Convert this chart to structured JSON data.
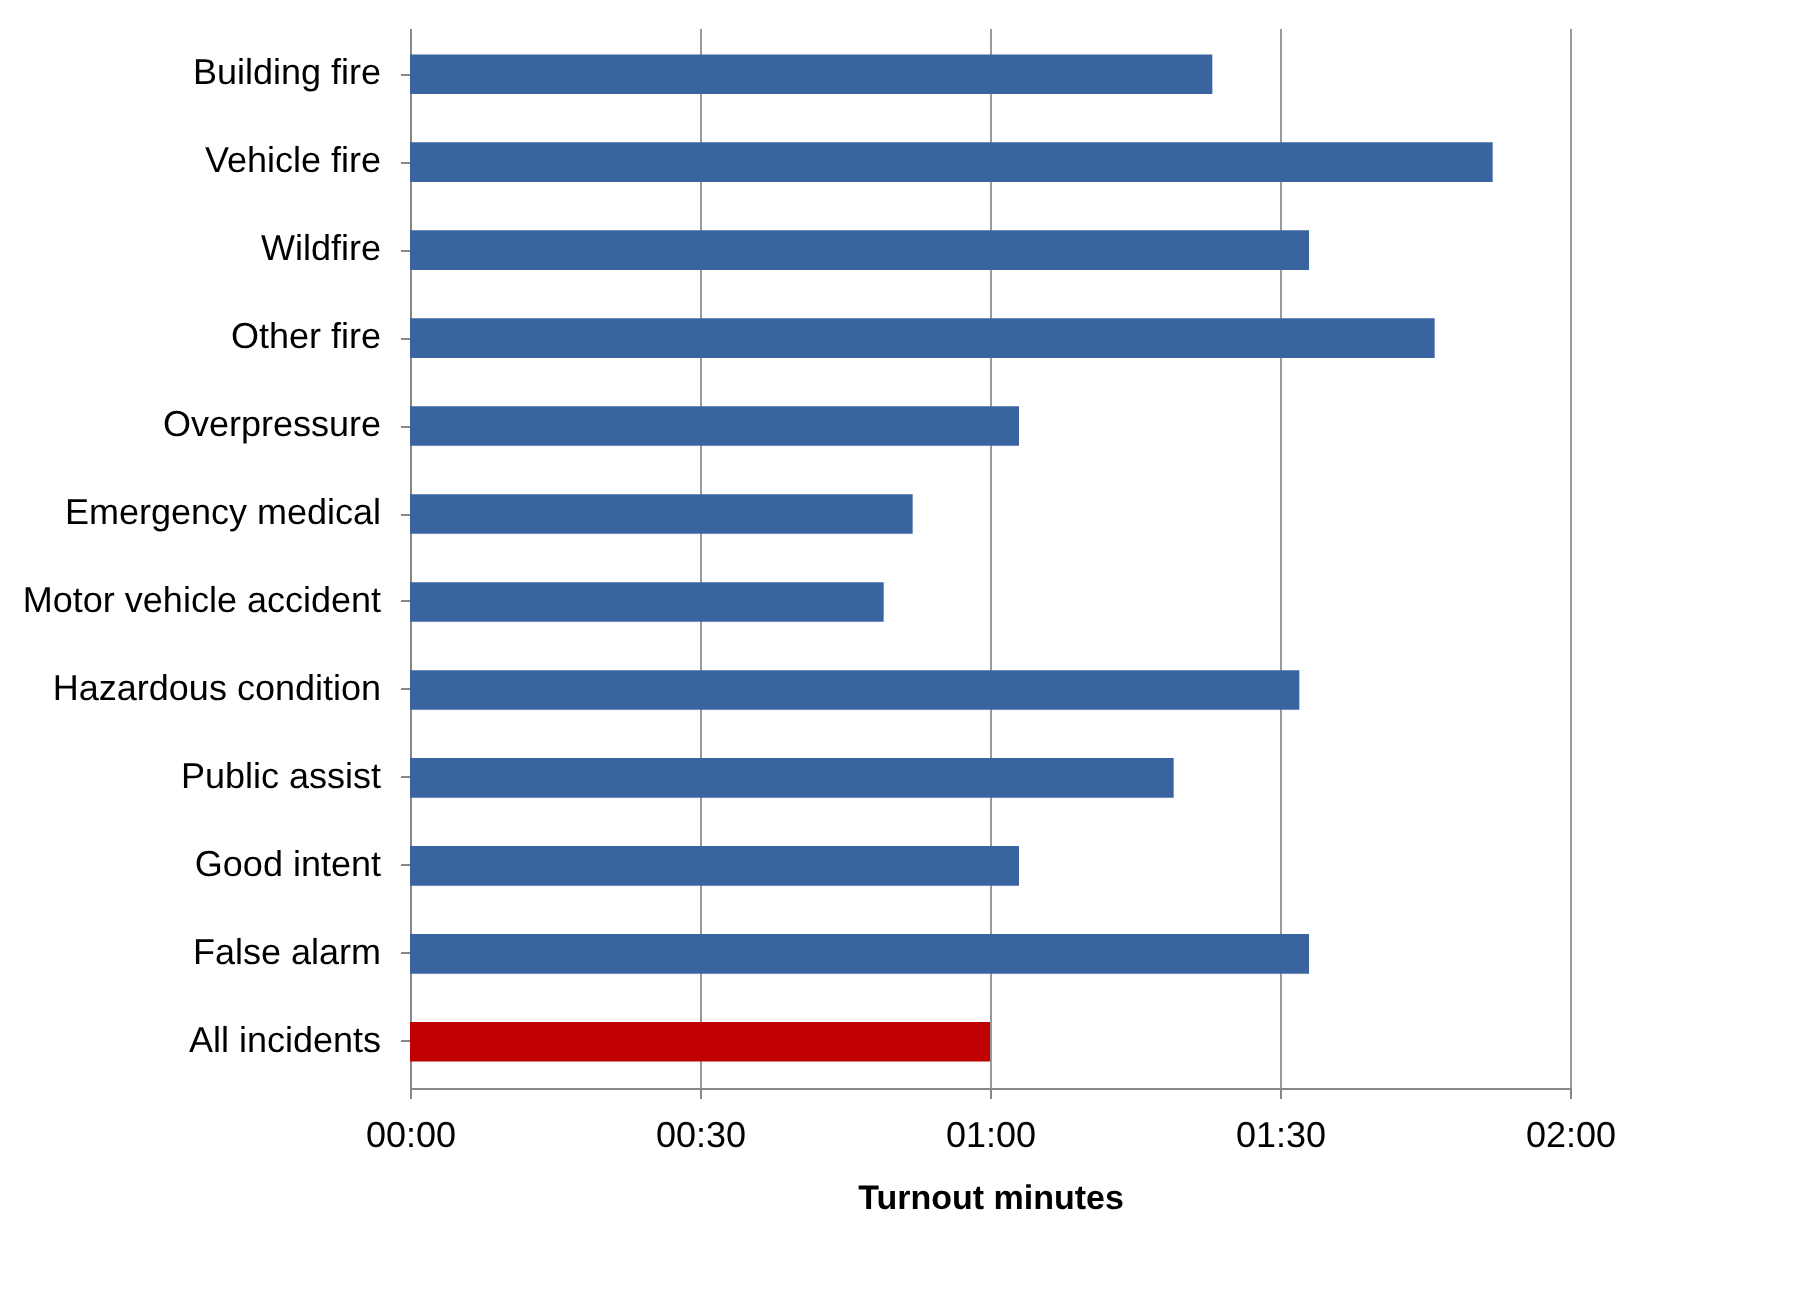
{
  "chart_data": {
    "type": "bar",
    "orientation": "horizontal",
    "xlabel": "Turnout minutes",
    "categories": [
      "Building fire",
      "Vehicle fire",
      "Wildfire",
      "Other fire",
      "Overpressure",
      "Emergency medical",
      "Motor vehicle accident",
      "Hazardous condition",
      "Public assist",
      "Good intent",
      "False alarm",
      "All incidents"
    ],
    "values": [
      83,
      112,
      93,
      106,
      63,
      52,
      49,
      92,
      79,
      63,
      93,
      60
    ],
    "colors": [
      "#3a64a0",
      "#3a64a0",
      "#3a64a0",
      "#3a64a0",
      "#3a64a0",
      "#3a64a0",
      "#3a64a0",
      "#3a64a0",
      "#3a64a0",
      "#3a64a0",
      "#3a64a0",
      "#c00000"
    ],
    "xlim": [
      0,
      120
    ],
    "xticks": [
      {
        "value": 0,
        "label": "00:00"
      },
      {
        "value": 30,
        "label": "00:30"
      },
      {
        "value": 60,
        "label": "01:00"
      },
      {
        "value": 90,
        "label": "01:30"
      },
      {
        "value": 120,
        "label": "02:00"
      }
    ],
    "grid": "x"
  }
}
